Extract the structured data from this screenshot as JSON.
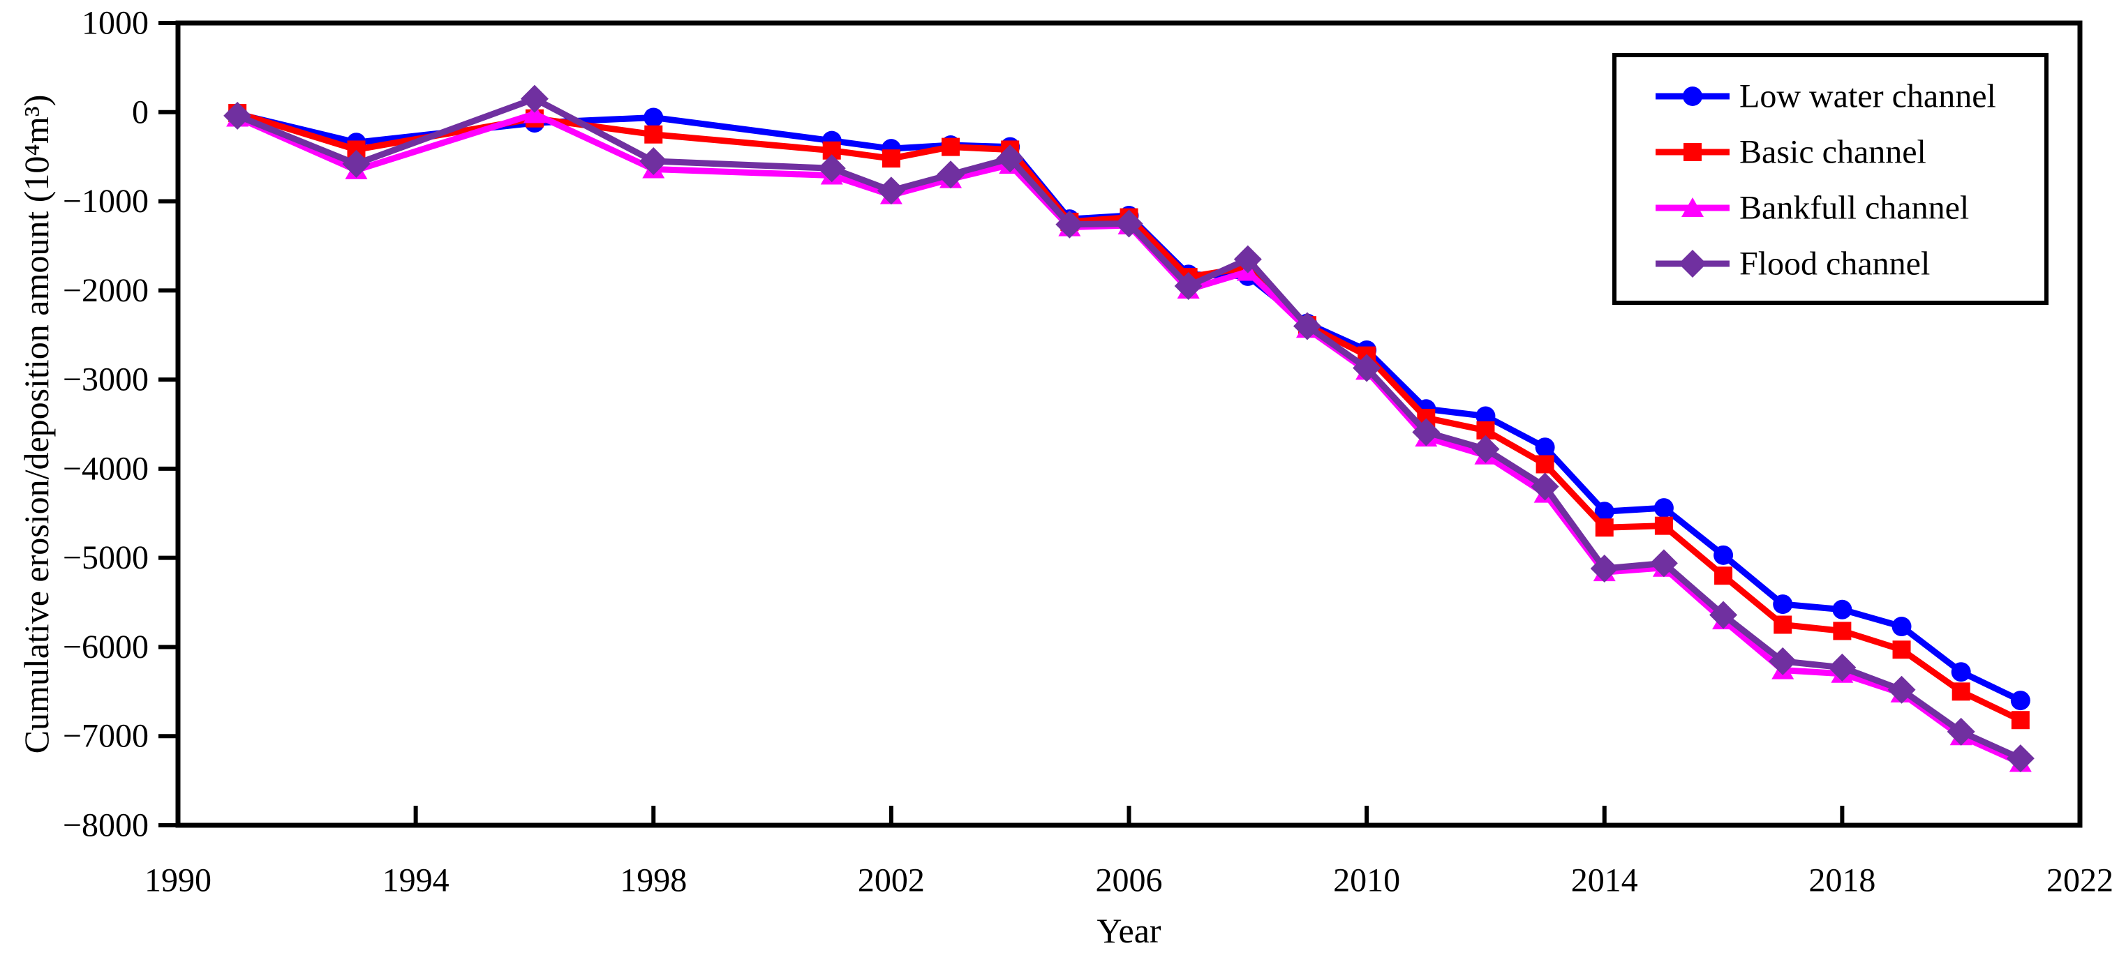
{
  "chart_data": {
    "type": "line",
    "title": "",
    "xlabel": "Year",
    "ylabel": "Cumulative erosion/deposition amount (10⁴m³)",
    "xlim": [
      1990,
      2022
    ],
    "ylim": [
      -8000,
      1000
    ],
    "grid": false,
    "legend_position": "top-right",
    "x": [
      1991,
      1993,
      1996,
      1998,
      2001,
      2002,
      2003,
      2004,
      2005,
      2006,
      2007,
      2008,
      2009,
      2010,
      2011,
      2012,
      2013,
      2014,
      2015,
      2016,
      2017,
      2018,
      2019,
      2020,
      2021
    ],
    "xticks": [
      1990,
      1994,
      1998,
      2002,
      2006,
      2010,
      2014,
      2018,
      2022
    ],
    "xtick_labels": [
      "1990",
      "1994",
      "1998",
      "2002",
      "2006",
      "2010",
      "2014",
      "2018",
      "2022"
    ],
    "yticks": [
      1000,
      0,
      -1000,
      -2000,
      -3000,
      -4000,
      -5000,
      -6000,
      -7000,
      -8000
    ],
    "ytick_labels": [
      "1000",
      "0",
      "−1000",
      "−2000",
      "−3000",
      "−4000",
      "−5000",
      "−6000",
      "−7000",
      "−8000"
    ],
    "series": [
      {
        "name": "Low water channel",
        "color": "#0000FF",
        "marker": "circle",
        "values": [
          -20,
          -340,
          -120,
          -60,
          -320,
          -410,
          -370,
          -390,
          -1200,
          -1160,
          -1820,
          -1840,
          -2370,
          -2670,
          -3330,
          -3410,
          -3760,
          -4480,
          -4440,
          -4970,
          -5520,
          -5580,
          -5770,
          -6280,
          -6600
        ]
      },
      {
        "name": "Basic channel",
        "color": "#FF0000",
        "marker": "square",
        "values": [
          -10,
          -420,
          -70,
          -250,
          -430,
          -520,
          -390,
          -420,
          -1230,
          -1180,
          -1850,
          -1740,
          -2390,
          -2730,
          -3430,
          -3570,
          -3950,
          -4660,
          -4640,
          -5200,
          -5750,
          -5820,
          -6030,
          -6500,
          -6820
        ]
      },
      {
        "name": "Bankfull channel",
        "color": "#FF00FF",
        "marker": "triangle-up",
        "values": [
          -60,
          -650,
          -20,
          -640,
          -710,
          -930,
          -750,
          -590,
          -1290,
          -1270,
          -1990,
          -1790,
          -2430,
          -2900,
          -3650,
          -3850,
          -4280,
          -5160,
          -5110,
          -5700,
          -6260,
          -6300,
          -6520,
          -7000,
          -7300
        ]
      },
      {
        "name": "Flood channel",
        "color": "#7030A0",
        "marker": "diamond",
        "values": [
          -40,
          -580,
          150,
          -550,
          -630,
          -880,
          -700,
          -520,
          -1260,
          -1250,
          -1950,
          -1650,
          -2400,
          -2870,
          -3590,
          -3780,
          -4200,
          -5120,
          -5060,
          -5640,
          -6160,
          -6230,
          -6480,
          -6950,
          -7250
        ]
      }
    ]
  },
  "colors": {
    "axis": "#000000",
    "background": "#FFFFFF"
  }
}
